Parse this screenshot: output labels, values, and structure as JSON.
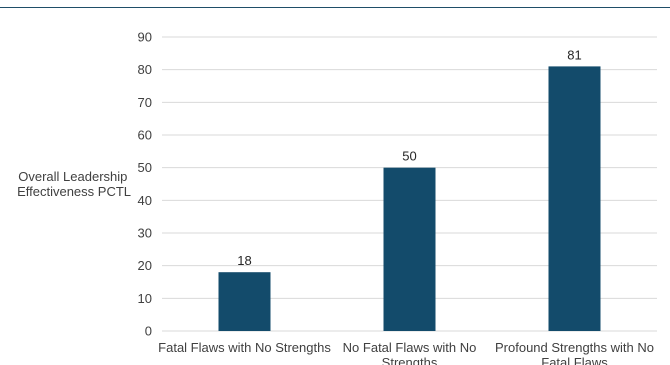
{
  "chart_data": {
    "type": "bar",
    "categories": [
      [
        "Fatal Flaws with No Strengths"
      ],
      [
        "No Fatal Flaws with No",
        "Strengths"
      ],
      [
        "Profound Strengths with No",
        "Fatal Flaws"
      ]
    ],
    "values": [
      18,
      50,
      81
    ],
    "data_labels": [
      "18",
      "50",
      "81"
    ],
    "ylabel": [
      "Overall Leadership",
      "Effectiveness PCTL"
    ],
    "ylim": [
      0,
      90
    ],
    "yticks": [
      0,
      10,
      20,
      30,
      40,
      50,
      60,
      70,
      80,
      90
    ],
    "grid": true,
    "bar_color": "#134b6b",
    "grid_color": "#d9d9d9"
  }
}
